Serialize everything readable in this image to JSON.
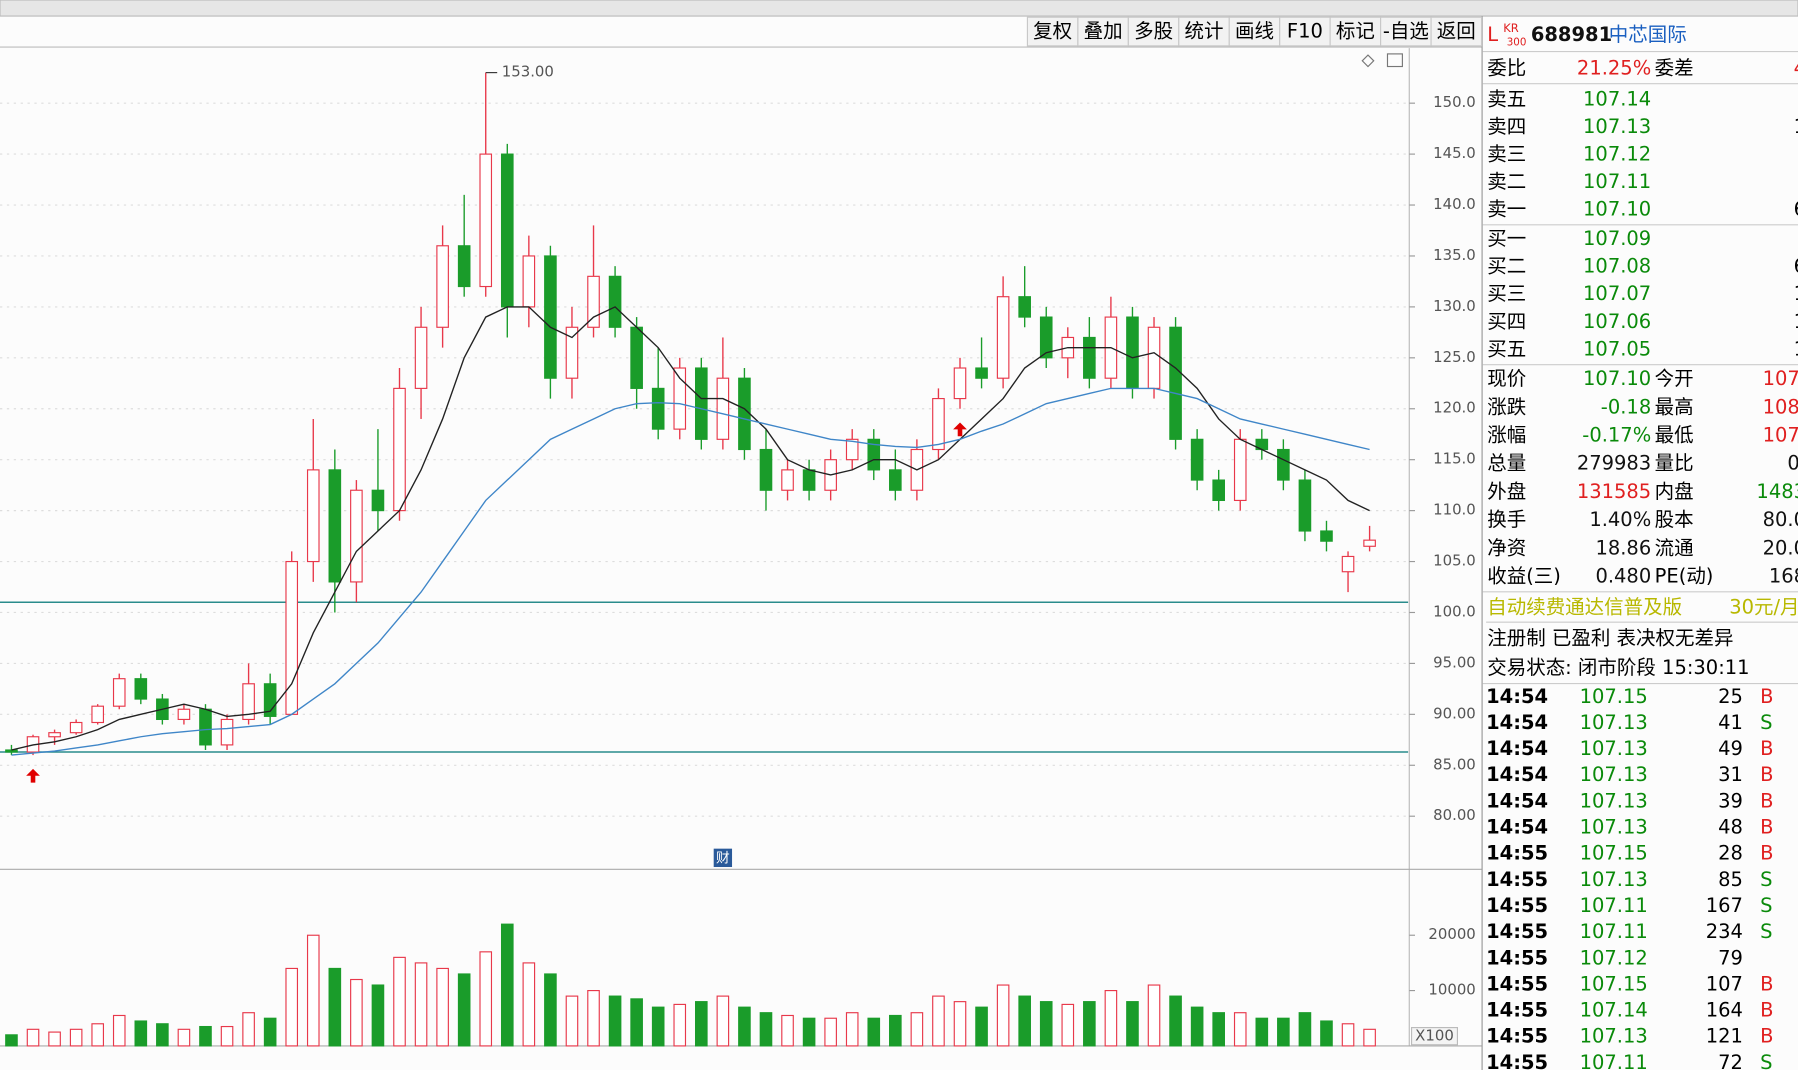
{
  "toolbar": [
    "复权",
    "叠加",
    "多股",
    "统计",
    "画线",
    "F10",
    "标记",
    "-自选",
    "返回"
  ],
  "quote": {
    "prefix": "L",
    "badge": "KR",
    "badge_sub": "300",
    "code": "688981",
    "name": "中芯国际",
    "weibi": [
      "委比",
      "21.25%",
      "委差",
      "4"
    ],
    "asks": [
      [
        "卖五",
        "107.14",
        ""
      ],
      [
        "卖四",
        "107.13",
        "1"
      ],
      [
        "卖三",
        "107.12",
        ""
      ],
      [
        "卖二",
        "107.11",
        ""
      ],
      [
        "卖一",
        "107.10",
        "6"
      ]
    ],
    "bids": [
      [
        "买一",
        "107.09",
        ""
      ],
      [
        "买二",
        "107.08",
        "6"
      ],
      [
        "买三",
        "107.07",
        "1"
      ],
      [
        "买四",
        "107.06",
        "1"
      ],
      [
        "买五",
        "107.05",
        "1"
      ]
    ],
    "stats": [
      [
        "现价",
        "107.10",
        "今开",
        "107."
      ],
      [
        "涨跌",
        "-0.18",
        "最高",
        "108."
      ],
      [
        "涨幅",
        "-0.17%",
        "最低",
        "107."
      ],
      [
        "总量",
        "279983",
        "量比",
        "0."
      ],
      [
        "外盘",
        "131585",
        "内盘",
        "1483"
      ],
      [
        "换手",
        "1.40%",
        "股本",
        "80.0"
      ],
      [
        "净资",
        "18.86",
        "流通",
        "20.0"
      ],
      [
        "收益(三)",
        "0.480",
        "PE(动)",
        "168"
      ]
    ],
    "notice": "自动续费通达信普及版",
    "notice_price": "30元/月",
    "tags": "注册制 已盈利 表决权无差异",
    "status": "交易状态: 闭市阶段 15:30:11"
  },
  "trades": [
    {
      "time": "14:54",
      "price": "107.15",
      "volume": "25",
      "side": "B"
    },
    {
      "time": "14:54",
      "price": "107.13",
      "volume": "41",
      "side": "S"
    },
    {
      "time": "14:54",
      "price": "107.13",
      "volume": "49",
      "side": "B"
    },
    {
      "time": "14:54",
      "price": "107.13",
      "volume": "31",
      "side": "B"
    },
    {
      "time": "14:54",
      "price": "107.13",
      "volume": "39",
      "side": "B"
    },
    {
      "time": "14:54",
      "price": "107.13",
      "volume": "48",
      "side": "B"
    },
    {
      "time": "14:55",
      "price": "107.15",
      "volume": "28",
      "side": "B"
    },
    {
      "time": "14:55",
      "price": "107.13",
      "volume": "85",
      "side": "S"
    },
    {
      "time": "14:55",
      "price": "107.11",
      "volume": "167",
      "side": "S"
    },
    {
      "time": "14:55",
      "price": "107.11",
      "volume": "234",
      "side": "S"
    },
    {
      "time": "14:55",
      "price": "107.12",
      "volume": "79"
    },
    {
      "time": "14:55",
      "price": "107.15",
      "volume": "107",
      "side": "B"
    },
    {
      "time": "14:55",
      "price": "107.14",
      "volume": "164",
      "side": "B"
    },
    {
      "time": "14:55",
      "price": "107.13",
      "volume": "121",
      "side": "B"
    },
    {
      "time": "14:55",
      "price": "107.11",
      "volume": "72",
      "side": "S"
    }
  ],
  "chart_data": [
    {
      "type": "candlestick",
      "open": [
        86.5,
        86.3,
        87.8,
        88.2,
        89.2,
        90.8,
        93.5,
        91.5,
        89.5,
        90.5,
        87,
        89.5,
        93,
        90,
        105,
        114,
        103,
        112,
        110,
        122,
        128,
        136,
        132,
        145,
        130,
        135,
        123,
        128,
        133,
        128,
        122,
        118,
        124,
        117,
        123,
        116,
        112,
        114,
        112,
        115,
        117,
        114,
        112,
        116,
        121,
        124,
        123,
        131,
        129,
        125,
        127,
        123,
        129,
        122,
        128,
        117,
        113,
        111,
        117,
        116,
        113,
        108,
        104,
        106.5
      ],
      "high": [
        87,
        88,
        88.5,
        89.5,
        91,
        94,
        94,
        92,
        91,
        91,
        90,
        95,
        94,
        106,
        119,
        116,
        113,
        118,
        124,
        130,
        138,
        141,
        153,
        146,
        137,
        136,
        130,
        138,
        134,
        129,
        126,
        125,
        125,
        127,
        124,
        118,
        115,
        115,
        116,
        118,
        118,
        116,
        117,
        122,
        125,
        127,
        133,
        134,
        130,
        128,
        129,
        131,
        130,
        129,
        129,
        118,
        114,
        118,
        118,
        117,
        114,
        109,
        106,
        108.5
      ],
      "low": [
        86,
        86,
        87,
        88,
        89,
        90.5,
        91,
        89,
        89,
        86.5,
        86.5,
        89,
        89,
        90,
        103,
        100,
        101,
        108,
        109,
        119,
        126,
        131,
        131,
        127,
        128,
        121,
        121,
        127,
        127,
        120,
        117,
        117,
        116,
        116,
        115,
        110,
        111,
        111,
        111,
        114,
        113,
        111,
        111,
        115,
        120,
        122,
        122,
        128,
        124,
        123,
        122,
        122,
        121,
        121,
        116,
        112,
        110,
        110,
        115,
        112,
        107,
        106,
        102,
        106
      ],
      "close": [
        86.3,
        87.8,
        88.2,
        89.2,
        90.8,
        93.5,
        91.5,
        89.5,
        90.5,
        87,
        89.5,
        93,
        89.8,
        105,
        114,
        103,
        112,
        110,
        122,
        128,
        136,
        132,
        145,
        130,
        135,
        123,
        128,
        133,
        128,
        122,
        118,
        124,
        117,
        123,
        116,
        112,
        114,
        112,
        115,
        117,
        114,
        112,
        116,
        121,
        124,
        123,
        131,
        129,
        125,
        127,
        123,
        129,
        122,
        128,
        117,
        113,
        111,
        117,
        116,
        113,
        108,
        107,
        105.5,
        107.1
      ],
      "ma_lines": [
        {
          "color": "#222222",
          "values": [
            86.5,
            87,
            87.3,
            87.8,
            88.5,
            89.5,
            90,
            90.5,
            91,
            90.5,
            89.8,
            90,
            90.3,
            93,
            98,
            102,
            106,
            108,
            110,
            114,
            119,
            125,
            129,
            130,
            130,
            128,
            127,
            129,
            130,
            128,
            126,
            123,
            121,
            121,
            120,
            118,
            115,
            114,
            113.5,
            114,
            115,
            115,
            114,
            115,
            117,
            119,
            121,
            124,
            125.5,
            126,
            126,
            126,
            125,
            125.5,
            124,
            122,
            119,
            117,
            116,
            115,
            114,
            113,
            111,
            110
          ]
        },
        {
          "color": "#3f86c8",
          "values": [
            86,
            86.2,
            86.4,
            86.7,
            87,
            87.4,
            87.8,
            88.1,
            88.3,
            88.5,
            88.6,
            88.8,
            89,
            90,
            91.5,
            93,
            95,
            97,
            99.5,
            102,
            105,
            108,
            111,
            113,
            115,
            117,
            118,
            119,
            120,
            120.5,
            120.6,
            120.5,
            120,
            119.5,
            119,
            118.5,
            118,
            117.5,
            117,
            116.8,
            116.5,
            116.3,
            116.2,
            116.5,
            117,
            117.8,
            118.5,
            119.5,
            120.5,
            121,
            121.5,
            122,
            122,
            122,
            121.5,
            121,
            120,
            119,
            118.5,
            118,
            117.5,
            117,
            116.5,
            116
          ]
        }
      ],
      "up_color": "#e8384a",
      "down_color": "#1a9c2a",
      "ylim": [
        74.9,
        155.4
      ],
      "yticks": [
        {
          "value": 80,
          "label": "80.00"
        },
        {
          "value": 85,
          "label": "85.00"
        },
        {
          "value": 90,
          "label": "90.00"
        },
        {
          "value": 95,
          "label": "95.00"
        },
        {
          "value": 100,
          "label": "100.0"
        },
        {
          "value": 105,
          "label": "105.0"
        },
        {
          "value": 110,
          "label": "110.0"
        },
        {
          "value": 115,
          "label": "115.0"
        },
        {
          "value": 120,
          "label": "120.0"
        },
        {
          "value": 125,
          "label": "125.0"
        },
        {
          "value": 130,
          "label": "130.0"
        },
        {
          "value": 135,
          "label": "135.0"
        },
        {
          "value": 140,
          "label": "140.0"
        },
        {
          "value": 145,
          "label": "145.0"
        },
        {
          "value": 150,
          "label": "150.0"
        }
      ],
      "grid": true,
      "hlines": [
        101,
        86.3
      ],
      "peak_label": {
        "value": 153,
        "label": "153.00"
      },
      "signal_arrows": [
        1,
        44
      ],
      "event_labels": [
        {
          "index": 33,
          "label": "财"
        }
      ]
    },
    {
      "type": "bar",
      "values": [
        2000,
        3000,
        2500,
        3000,
        4000,
        5500,
        4500,
        4000,
        3000,
        3500,
        3500,
        6000,
        5000,
        14000,
        20000,
        14000,
        12000,
        11000,
        16000,
        15000,
        14000,
        13000,
        17000,
        22000,
        15000,
        13000,
        9000,
        10000,
        9000,
        8500,
        7000,
        7500,
        8000,
        9000,
        7000,
        6000,
        5500,
        5000,
        5000,
        6000,
        5000,
        5500,
        6000,
        9000,
        8000,
        7000,
        11000,
        9000,
        8000,
        7500,
        8000,
        10000,
        8000,
        11000,
        9000,
        7000,
        6000,
        6000,
        5000,
        5000,
        6000,
        4500,
        4000,
        3000
      ],
      "ylim": [
        0,
        31500
      ],
      "yticks": [
        10000,
        20000
      ],
      "unit_label": "X100"
    }
  ]
}
